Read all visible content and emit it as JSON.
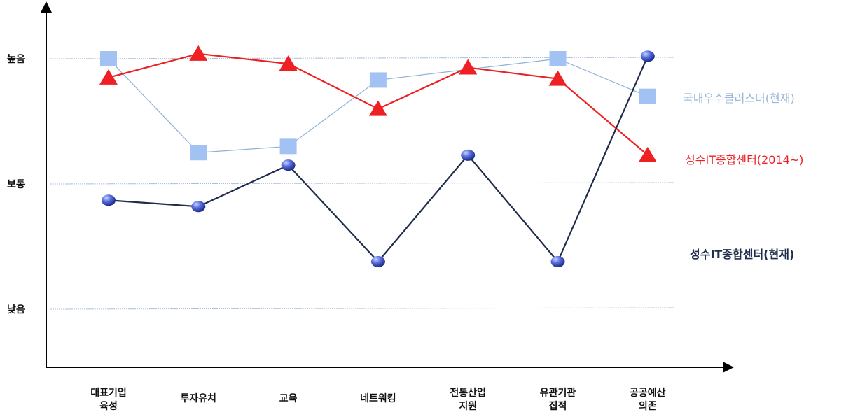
{
  "chart_data": {
    "type": "line",
    "y_levels": [
      "낮음",
      "보통",
      "높음"
    ],
    "ylim": [
      0,
      2.6
    ],
    "categories": [
      [
        "대표기업",
        "육성"
      ],
      [
        "투자유치"
      ],
      [
        "교육"
      ],
      [
        "네트워킹"
      ],
      [
        "전통산업",
        "지원"
      ],
      [
        "유관기관",
        "집적"
      ],
      [
        "공공예산",
        "의존"
      ]
    ],
    "series": [
      {
        "name": "국내우수클러스터(현재)",
        "color": "#a3c2f4",
        "line_color": "#8eb2d6",
        "marker": "square",
        "values": [
          2.0,
          1.25,
          1.3,
          1.83,
          null,
          2.0,
          1.7
        ]
      },
      {
        "name": "성수IT종합센터(2014~)",
        "color": "#ee2024",
        "line_color": "#ee2024",
        "marker": "triangle",
        "values": [
          1.85,
          2.04,
          1.96,
          1.6,
          1.93,
          1.84,
          1.23
        ]
      },
      {
        "name": "성수IT종합센터(현재)",
        "color": "#4d63d3",
        "line_color": "#1f2d4b",
        "marker": "circle",
        "values": [
          0.87,
          0.82,
          1.15,
          0.38,
          1.23,
          0.38,
          2.02
        ]
      }
    ],
    "grid": true,
    "legend_position": "right"
  }
}
